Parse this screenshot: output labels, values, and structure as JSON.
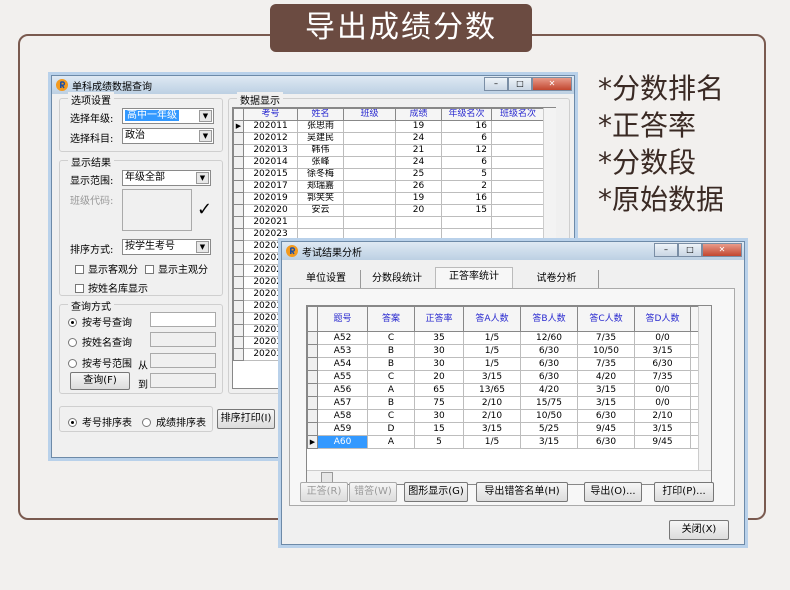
{
  "banner": {
    "title": "导出成绩分数"
  },
  "features": [
    "*分数排名",
    "*正答率",
    "*分数段",
    "*原始数据"
  ],
  "win1": {
    "title": "单科成绩数据查询",
    "options": {
      "legend": "选项设置",
      "grade_label": "选择年级:",
      "grade_value": "高中一年级",
      "subject_label": "选择科目:",
      "subject_value": "政治"
    },
    "display": {
      "legend": "显示结果",
      "range_label": "显示范围:",
      "range_value": "年级全部",
      "class_code_label": "班级代码:",
      "sort_label": "排序方式:",
      "sort_value": "按学生考号",
      "objective": "显示客观分",
      "subjective": "显示主观分",
      "by_name": "按姓名库显示"
    },
    "query": {
      "legend": "查询方式",
      "by_id": "按考号查询",
      "by_name": "按姓名查询",
      "by_range": "按考号范围",
      "from": "从",
      "to": "到",
      "query_button": "查询(F)"
    },
    "sort_bar": {
      "by_id": "考号排序表",
      "by_score": "成绩排序表",
      "print_button": "排序打印(I)"
    },
    "data": {
      "legend": "数据显示",
      "columns": [
        "考号",
        "姓名",
        "班级",
        "成绩",
        "年级名次",
        "班级名次"
      ],
      "rows": [
        [
          "202011",
          "张思雨",
          "",
          "19",
          "16",
          ""
        ],
        [
          "202012",
          "吴建民",
          "",
          "24",
          "6",
          ""
        ],
        [
          "202013",
          "韩伟",
          "",
          "21",
          "12",
          ""
        ],
        [
          "202014",
          "张峰",
          "",
          "24",
          "6",
          ""
        ],
        [
          "202015",
          "徐冬梅",
          "",
          "25",
          "5",
          ""
        ],
        [
          "202017",
          "郑瑞嘉",
          "",
          "26",
          "2",
          ""
        ],
        [
          "202019",
          "郭笑笑",
          "",
          "19",
          "16",
          ""
        ],
        [
          "202020",
          "安云",
          "",
          "20",
          "15",
          ""
        ],
        [
          "202021",
          "",
          "",
          "",
          "",
          ""
        ],
        [
          "202023",
          "",
          "",
          "",
          "",
          ""
        ],
        [
          "202024",
          "",
          "",
          "",
          "",
          ""
        ],
        [
          "202026",
          "",
          "",
          "",
          "",
          ""
        ],
        [
          "202027",
          "",
          "",
          "",
          "",
          ""
        ],
        [
          "202029",
          "",
          "",
          "",
          "",
          ""
        ],
        [
          "202030",
          "",
          "",
          "",
          "",
          ""
        ],
        [
          "202031",
          "",
          "",
          "",
          "",
          ""
        ],
        [
          "202032",
          "",
          "",
          "",
          "",
          ""
        ],
        [
          "202034",
          "",
          "",
          "",
          "",
          ""
        ],
        [
          "202036",
          "",
          "",
          "",
          "",
          ""
        ],
        [
          "202037",
          "",
          "",
          "",
          "",
          ""
        ]
      ]
    }
  },
  "win2": {
    "title": "考试结果分析",
    "tabs": [
      "单位设置",
      "分数段统计",
      "正答率统计",
      "试卷分析"
    ],
    "active_tab": "正答率统计",
    "columns": [
      "题号",
      "答案",
      "正答率",
      "答A人数",
      "答B人数",
      "答C人数",
      "答D人数"
    ],
    "rows": [
      [
        "A52",
        "C",
        "35",
        "1/5",
        "12/60",
        "7/35",
        "0/0"
      ],
      [
        "A53",
        "B",
        "30",
        "1/5",
        "6/30",
        "10/50",
        "3/15"
      ],
      [
        "A54",
        "B",
        "30",
        "1/5",
        "6/30",
        "7/35",
        "6/30"
      ],
      [
        "A55",
        "C",
        "20",
        "3/15",
        "6/30",
        "4/20",
        "7/35"
      ],
      [
        "A56",
        "A",
        "65",
        "13/65",
        "4/20",
        "3/15",
        "0/0"
      ],
      [
        "A57",
        "B",
        "75",
        "2/10",
        "15/75",
        "3/15",
        "0/0"
      ],
      [
        "A58",
        "C",
        "30",
        "2/10",
        "10/50",
        "6/30",
        "2/10"
      ],
      [
        "A59",
        "D",
        "15",
        "3/15",
        "5/25",
        "9/45",
        "3/15"
      ],
      [
        "A60",
        "A",
        "5",
        "1/5",
        "3/15",
        "6/30",
        "9/45"
      ]
    ],
    "selected_row": "A60",
    "buttons": {
      "correct": "正答(R)",
      "wrong": "错答(W)",
      "chart": "图形显示(G)",
      "export_wrong": "导出错答名单(H)",
      "export": "导出(O)...",
      "print": "打印(P)...",
      "close": "关闭(X)"
    }
  },
  "colors": {
    "banner": "#6b4b41",
    "header_text": "#2a2ad0",
    "selection": "#3399ff"
  }
}
